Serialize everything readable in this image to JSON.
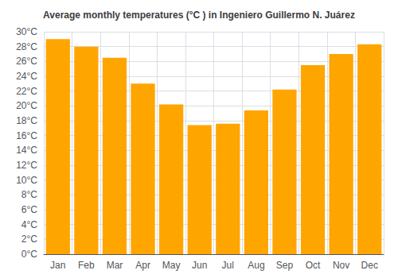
{
  "chart_data": {
    "type": "bar",
    "title": "Average monthly temperatures (°C ) in Ingeniero Guillermo N. Juárez",
    "categories": [
      "Jan",
      "Feb",
      "Mar",
      "Apr",
      "May",
      "Jun",
      "Jul",
      "Aug",
      "Sep",
      "Oct",
      "Nov",
      "Dec"
    ],
    "values": [
      29.0,
      28.0,
      26.5,
      23.0,
      20.2,
      17.4,
      17.6,
      19.4,
      22.2,
      25.5,
      27.0,
      28.3
    ],
    "color": "#FFA500",
    "ylim": [
      0,
      30
    ],
    "yticks": [
      {
        "value": 0,
        "label": "0°C"
      },
      {
        "value": 2,
        "label": "2°C"
      },
      {
        "value": 4,
        "label": "4°C"
      },
      {
        "value": 6,
        "label": "6°C"
      },
      {
        "value": 8,
        "label": "8°C"
      },
      {
        "value": 10,
        "label": "10°C"
      },
      {
        "value": 12,
        "label": "12°C"
      },
      {
        "value": 14,
        "label": "14°C"
      },
      {
        "value": 16,
        "label": "16°C"
      },
      {
        "value": 18,
        "label": "18°C"
      },
      {
        "value": 20,
        "label": "20°C"
      },
      {
        "value": 22,
        "label": "22°C"
      },
      {
        "value": 24,
        "label": "24°C"
      },
      {
        "value": 26,
        "label": "26°C"
      },
      {
        "value": 28,
        "label": "28°C"
      },
      {
        "value": 30,
        "label": "30°C"
      }
    ],
    "grid": true
  }
}
